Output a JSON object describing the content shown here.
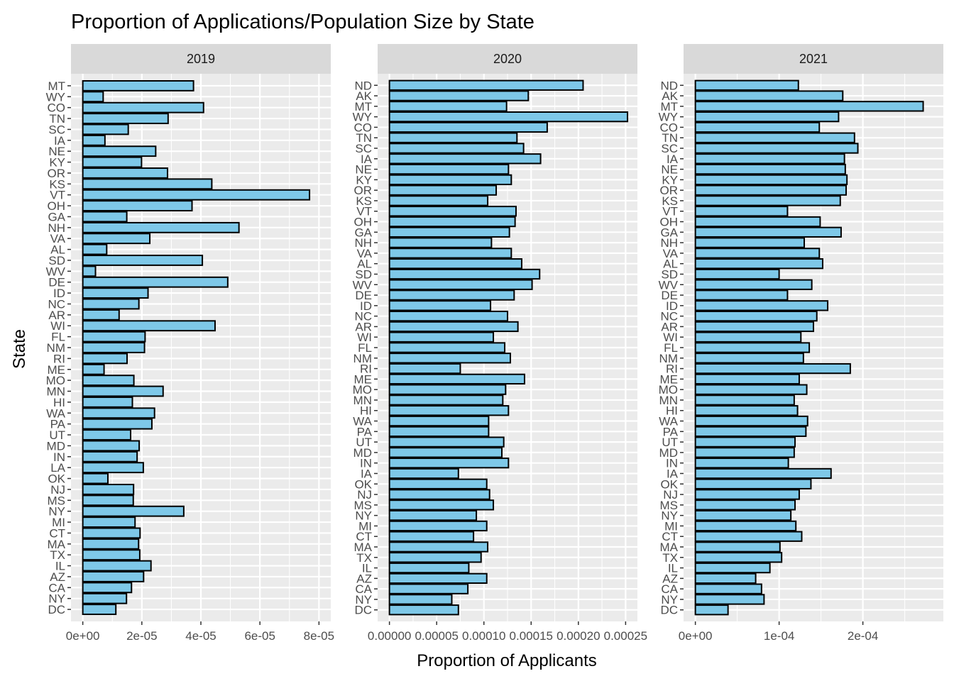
{
  "chart_data": {
    "type": "bar",
    "orientation": "horizontal",
    "title": "Proportion of Applications/Population Size by State",
    "xlabel": "Proportion of Applicants",
    "ylabel": "State",
    "grid": true,
    "colors": {
      "bar_fill": "#7ec8e8",
      "bar_stroke": "#000000",
      "panel_bg": "#ebebeb",
      "strip_bg": "#d9d9d9",
      "grid": "#ffffff"
    },
    "facets": [
      {
        "label": "2019",
        "xlim": [
          0,
          8e-05
        ],
        "ticks": [
          0,
          2e-05,
          4e-05,
          6e-05,
          8e-05
        ],
        "tick_labels": [
          "0e+00",
          "2e-05",
          "4e-05",
          "6e-05",
          "8e-05"
        ],
        "categories": [
          "MT",
          "WY",
          "CO",
          "TN",
          "SC",
          "IA",
          "NE",
          "KY",
          "OR",
          "KS",
          "VT",
          "OH",
          "GA",
          "NH",
          "VA",
          "AL",
          "SD",
          "WV",
          "DE",
          "ID",
          "NC",
          "AR",
          "WI",
          "FL",
          "NM",
          "RI",
          "ME",
          "MO",
          "MN",
          "HI",
          "WA",
          "PA",
          "UT",
          "MD",
          "IN",
          "LA",
          "OK",
          "NJ",
          "MS",
          "NY",
          "MI",
          "CT",
          "MA",
          "TX",
          "IL",
          "AZ",
          "CA",
          "NY",
          "DC"
        ],
        "values": [
          3.75e-05,
          6.9e-06,
          4.09e-05,
          2.89e-05,
          1.54e-05,
          7.5e-06,
          2.47e-05,
          1.99e-05,
          2.87e-05,
          4.37e-05,
          7.68e-05,
          3.7e-05,
          1.49e-05,
          5.29e-05,
          2.27e-05,
          8.1e-06,
          4.05e-05,
          4.3e-06,
          4.91e-05,
          2.21e-05,
          1.9e-05,
          1.23e-05,
          4.48e-05,
          2.11e-05,
          2.09e-05,
          1.5e-05,
          7.2e-06,
          1.73e-05,
          2.72e-05,
          1.68e-05,
          2.43e-05,
          2.34e-05,
          1.62e-05,
          1.91e-05,
          1.84e-05,
          2.05e-05,
          8.5e-06,
          1.72e-05,
          1.71e-05,
          3.42e-05,
          1.77e-05,
          1.94e-05,
          1.89e-05,
          1.93e-05,
          2.31e-05,
          2.06e-05,
          1.65e-05,
          1.48e-05,
          1.12e-05
        ]
      },
      {
        "label": "2020",
        "xlim": [
          0,
          0.00025
        ],
        "ticks": [
          0,
          5e-05,
          0.0001,
          0.00015,
          0.0002,
          0.00025
        ],
        "tick_labels": [
          "0.00000",
          "0.00005",
          "0.00010",
          "0.00015",
          "0.00020",
          "0.00025"
        ],
        "categories": [
          "ND",
          "AK",
          "MT",
          "WY",
          "CO",
          "TN",
          "SC",
          "IA",
          "NE",
          "KY",
          "OR",
          "KS",
          "VT",
          "OH",
          "GA",
          "NH",
          "VA",
          "AL",
          "SD",
          "WV",
          "DE",
          "ID",
          "NC",
          "AR",
          "WI",
          "FL",
          "NM",
          "RI",
          "ME",
          "MO",
          "MN",
          "HI",
          "WA",
          "PA",
          "UT",
          "MD",
          "IN",
          "IA",
          "OK",
          "NJ",
          "MS",
          "NY",
          "MI",
          "CT",
          "MA",
          "TX",
          "IL",
          "AZ",
          "CA",
          "NY",
          "DC"
        ],
        "values": [
          0.000205,
          0.000147,
          0.000124,
          0.000252,
          0.000167,
          0.000135,
          0.000142,
          0.00016,
          0.000126,
          0.000129,
          0.000113,
          0.000104,
          0.000134,
          0.000133,
          0.000127,
          0.000108,
          0.000129,
          0.00014,
          0.000159,
          0.000151,
          0.000132,
          0.000107,
          0.000125,
          0.000136,
          0.00011,
          0.000122,
          0.000128,
          7.5e-05,
          0.000143,
          0.000123,
          0.00012,
          0.000126,
          0.000105,
          0.000105,
          0.000121,
          0.000119,
          0.000126,
          7.3e-05,
          0.000103,
          0.000106,
          0.00011,
          9.2e-05,
          0.000103,
          8.9e-05,
          0.000104,
          9.7e-05,
          8.4e-05,
          0.000103,
          8.3e-05,
          6.6e-05,
          7.3e-05
        ]
      },
      {
        "label": "2021",
        "xlim": [
          0,
          0.000282
        ],
        "ticks": [
          0,
          0.0001,
          0.0002
        ],
        "tick_labels": [
          "0e+00",
          "1e-04",
          "2e-04"
        ],
        "categories": [
          "ND",
          "AK",
          "MT",
          "WY",
          "CO",
          "TN",
          "SC",
          "IA",
          "NE",
          "KY",
          "OR",
          "KS",
          "VT",
          "OH",
          "GA",
          "NH",
          "VA",
          "AL",
          "SD",
          "WV",
          "DE",
          "ID",
          "NC",
          "AR",
          "WI",
          "FL",
          "NM",
          "RI",
          "ME",
          "MO",
          "MN",
          "HI",
          "WA",
          "PA",
          "UT",
          "MD",
          "IN",
          "IA",
          "OK",
          "NJ",
          "MS",
          "NY",
          "MI",
          "CT",
          "MA",
          "TX",
          "IL",
          "AZ",
          "CA",
          "NY",
          "DC"
        ],
        "values": [
          0.000123,
          0.000176,
          0.000272,
          0.000171,
          0.000148,
          0.00019,
          0.000194,
          0.000178,
          0.000179,
          0.000181,
          0.00018,
          0.000173,
          0.00011,
          0.000149,
          0.000174,
          0.00013,
          0.000148,
          0.000152,
          0.0001,
          0.000139,
          0.00011,
          0.000158,
          0.000145,
          0.000141,
          0.000126,
          0.000136,
          0.000129,
          0.000185,
          0.000124,
          0.000133,
          0.000118,
          0.000122,
          0.000134,
          0.000132,
          0.000119,
          0.000118,
          0.000111,
          0.000162,
          0.000138,
          0.000124,
          0.000119,
          0.000114,
          0.00012,
          0.000127,
          0.000101,
          0.000103,
          8.9e-05,
          7.2e-05,
          7.9e-05,
          8.2e-05,
          3.9e-05
        ]
      }
    ]
  }
}
